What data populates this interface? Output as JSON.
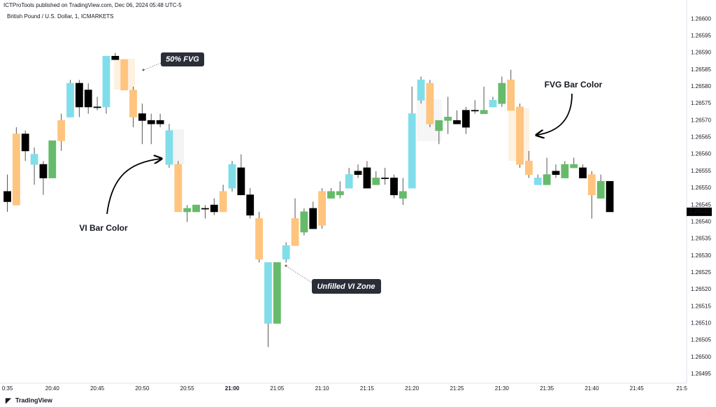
{
  "header": "ICTProTools published on TradingView.com, Dec 06, 2024 05:48 UTC-5",
  "footer": "TradingView",
  "chart_data": {
    "type": "candlestick",
    "title": "British Pound / U.S. Dollar, 1, ICMARKETS",
    "annotations": [
      "50% FVG",
      "VI Bar Color",
      "FVG Bar Color",
      "Unfilled VI Zone"
    ],
    "categories": [
      "0:35",
      null,
      null,
      null,
      null,
      "20:40",
      null,
      null,
      null,
      null,
      "20:45",
      null,
      null,
      null,
      null,
      "20:50",
      null,
      null,
      null,
      null,
      "20:55",
      null,
      null,
      null,
      null,
      "21:00",
      null,
      null,
      null,
      null,
      "21:05",
      null,
      null,
      null,
      null,
      "21:10",
      null,
      null,
      null,
      null,
      "21:15",
      null,
      null,
      null,
      null,
      "21:20",
      null,
      null,
      null,
      null,
      "21:25",
      null,
      null,
      null,
      null,
      "21:30",
      null,
      null,
      null,
      null,
      "21:35",
      null,
      null,
      null,
      null,
      "21:40",
      null,
      null,
      null,
      null,
      "21:45",
      null,
      null,
      null,
      null,
      "21:5"
    ],
    "open": [
      1.26549,
      1.26545,
      1.26566,
      1.26557,
      1.26557,
      1.26553,
      1.26564,
      1.26571,
      1.26581,
      1.26579,
      1.26574,
      1.26574,
      1.26589,
      1.26588,
      1.26579,
      1.26572,
      1.2657,
      1.2657,
      1.26567,
      1.26557,
      1.26543,
      1.26543,
      1.26544,
      1.26545,
      1.26543,
      1.2655,
      1.26556,
      1.26548,
      1.26541,
      1.26528,
      1.2651,
      1.26529,
      1.26533,
      1.26537,
      1.26544,
      1.26539,
      1.26547,
      1.26548,
      1.2655,
      1.26555,
      1.26556,
      1.26551,
      1.26553,
      1.26553,
      1.26547,
      1.2655,
      1.26576,
      1.26581,
      1.26567,
      1.2657,
      1.2657,
      1.26573,
      1.26573,
      1.26572,
      1.26574,
      1.26575,
      1.26582,
      1.26574,
      1.26558,
      1.26553,
      1.26551,
      1.26555,
      1.26553,
      1.26556,
      1.26556,
      1.26554,
      1.26547,
      1.26552,
      null,
      null,
      null,
      null,
      null,
      null,
      null,
      null
    ],
    "high": [
      1.26554,
      1.26568,
      1.26567,
      1.26562,
      1.26558,
      1.26564,
      1.26572,
      1.26582,
      1.26582,
      1.26581,
      1.26577,
      1.26589,
      1.2659,
      1.26588,
      1.2658,
      1.26575,
      1.26572,
      1.26572,
      1.26569,
      1.26558,
      1.26545,
      1.26545,
      1.26545,
      1.26547,
      1.26551,
      1.26558,
      1.2656,
      1.2655,
      1.26543,
      1.26528,
      1.26528,
      1.26534,
      1.26547,
      1.26544,
      1.26546,
      1.2655,
      1.2655,
      1.26552,
      1.26556,
      1.26557,
      1.26558,
      1.26555,
      1.26556,
      1.26554,
      1.26553,
      1.2658,
      1.26583,
      1.26582,
      1.2657,
      1.26577,
      1.26573,
      1.26574,
      1.26576,
      1.2658,
      1.26577,
      1.26583,
      1.26585,
      1.26575,
      1.26561,
      1.26554,
      1.26559,
      1.26557,
      1.26558,
      1.26559,
      1.26557,
      1.26555,
      1.26554,
      1.26552,
      null,
      null,
      null,
      null,
      null,
      null,
      null,
      null
    ],
    "low": [
      1.26543,
      1.26545,
      1.26558,
      1.26551,
      1.26548,
      1.26553,
      1.26561,
      1.26571,
      1.26571,
      1.26572,
      1.26573,
      1.26572,
      1.26588,
      1.26579,
      1.26568,
      1.26563,
      1.26563,
      1.26568,
      1.26556,
      1.26543,
      1.2654,
      1.26543,
      1.26541,
      1.26542,
      1.26543,
      1.26549,
      1.26548,
      1.26541,
      1.26528,
      1.26503,
      1.2651,
      1.26528,
      1.26533,
      1.26536,
      1.26538,
      1.26538,
      1.26547,
      1.26547,
      1.2655,
      1.26553,
      1.2655,
      1.26551,
      1.26551,
      1.26547,
      1.26545,
      1.2655,
      1.26575,
      1.26568,
      1.26563,
      1.26566,
      1.26569,
      1.26566,
      1.26572,
      1.26572,
      1.26574,
      1.26574,
      1.26573,
      1.26556,
      1.26553,
      1.26551,
      1.26551,
      1.26553,
      1.26553,
      1.26556,
      1.26553,
      1.26541,
      1.26547,
      1.26543,
      null,
      null,
      null,
      null,
      null,
      null,
      null,
      null
    ],
    "close": [
      1.26546,
      1.26566,
      1.26561,
      1.2656,
      1.26553,
      1.26564,
      1.2657,
      1.26581,
      1.26574,
      1.26574,
      1.26574,
      1.26589,
      1.26588,
      1.26579,
      1.26571,
      1.2657,
      1.26569,
      1.26569,
      1.26557,
      1.26543,
      1.26544,
      1.26545,
      1.26544,
      1.26543,
      1.26549,
      1.26557,
      1.26548,
      1.26542,
      1.26529,
      1.2651,
      1.26528,
      1.26533,
      1.26541,
      1.26543,
      1.26538,
      1.26549,
      1.26549,
      1.26549,
      1.26554,
      1.26554,
      1.2655,
      1.26553,
      1.26553,
      1.26548,
      1.26549,
      1.26572,
      1.26582,
      1.26569,
      1.2657,
      1.26571,
      1.26569,
      1.26568,
      1.26573,
      1.26573,
      1.26576,
      1.26581,
      1.26573,
      1.26557,
      1.26554,
      1.26551,
      1.26554,
      1.26554,
      1.26557,
      1.26557,
      1.26553,
      1.26548,
      1.26552,
      1.26543,
      null,
      null,
      null,
      null,
      null,
      null,
      null,
      null
    ],
    "colors": [
      "#000000",
      "#ffc47e",
      "#000000",
      "#80deea",
      "#000000",
      "#66bb6a",
      "#ffc47e",
      "#80deea",
      "#000000",
      "#000000",
      "#000000",
      "#80deea",
      "#000000",
      "#ffc47e",
      "#ffc47e",
      "#000000",
      "#000000",
      "#000000",
      "#80deea",
      "#ffc47e",
      "#66bb6a",
      "#66bb6a",
      "#000000",
      "#000000",
      "#ffc47e",
      "#80deea",
      "#000000",
      "#000000",
      "#ffc47e",
      "#80deea",
      "#66bb6a",
      "#80deea",
      "#ffc47e",
      "#66bb6a",
      "#000000",
      "#ffc47e",
      "#66bb6a",
      "#66bb6a",
      "#80deea",
      "#000000",
      "#000000",
      "#66bb6a",
      "#000000",
      "#000000",
      "#66bb6a",
      "#80deea",
      "#80deea",
      "#ffc47e",
      "#66bb6a",
      "#66bb6a",
      "#000000",
      "#000000",
      "#000000",
      "#66bb6a",
      "#80deea",
      "#66bb6a",
      "#ffc47e",
      "#ffc47e",
      "#ffc47e",
      "#80deea",
      "#66bb6a",
      "#000000",
      "#66bb6a",
      "#66bb6a",
      "#000000",
      "#ffc47e",
      "#66bb6a",
      "#000000",
      null,
      null,
      null,
      null,
      null,
      null,
      null,
      null
    ],
    "ylim": [
      1.26492,
      1.26605
    ],
    "yticks": [
      {
        "value": 1.266,
        "label": "1.26600"
      },
      1.26595,
      {
        "value": 1.2659,
        "label": "1.26590"
      },
      1.26585,
      {
        "value": 1.2658,
        "label": "1.26580"
      },
      1.26575,
      {
        "value": 1.2657,
        "label": "1.26570"
      },
      1.26565,
      {
        "value": 1.2656,
        "label": "1.26560"
      },
      1.26555,
      {
        "value": 1.2655,
        "label": "1.26550"
      },
      1.26545,
      {
        "value": 1.2654,
        "label": "1.26540"
      },
      1.26535,
      {
        "value": 1.2653,
        "label": "1.26530"
      },
      1.26525,
      {
        "value": 1.2652,
        "label": "1.26520"
      },
      1.26515,
      {
        "value": 1.2651,
        "label": "1.26510"
      },
      1.26505,
      {
        "value": 1.265,
        "label": "1.26500"
      },
      1.26495
    ],
    "grid": false
  }
}
